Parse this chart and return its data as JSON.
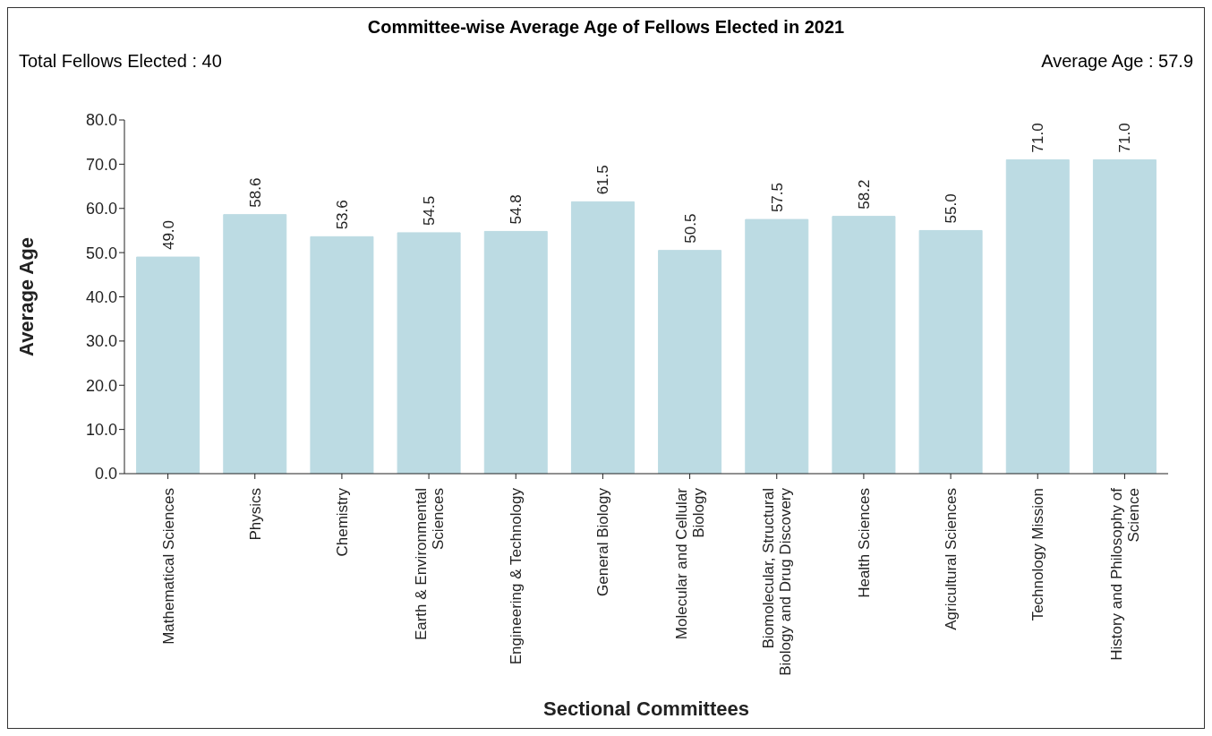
{
  "chart_data": {
    "type": "bar",
    "title": "Committee-wise Average Age of Fellows Elected in 2021",
    "xlabel": "Sectional Committees",
    "ylabel": "Average Age",
    "annotations": [
      "Total Fellows Elected : 40",
      "Average Age : 57.9"
    ],
    "categories": [
      "Mathematical Sciences",
      "Physics",
      "Chemistry",
      "Earth & Environmental Sciences",
      "Engineering & Technology",
      "General Biology",
      "Molecular and Cellular Biology",
      "Biomolecular, Structural Biology and Drug Discovery",
      "Health Sciences",
      "Agricultural Sciences",
      "Technology Mission",
      "History and Philosophy of Science"
    ],
    "values": [
      49.0,
      58.6,
      53.6,
      54.5,
      54.8,
      61.5,
      50.5,
      57.5,
      58.2,
      55.0,
      71.0,
      71.0
    ],
    "value_labels": [
      "49.0",
      "58.6",
      "53.6",
      "54.5",
      "54.8",
      "61.5",
      "50.5",
      "57.5",
      "58.2",
      "55.0",
      "71.0",
      "71.0"
    ],
    "color": "#bcdbe3",
    "ylim": [
      0,
      80
    ],
    "yticks": [
      {
        "value": 0,
        "label": "0.0"
      },
      {
        "value": 10,
        "label": "10.0"
      },
      {
        "value": 20,
        "label": "20.0"
      },
      {
        "value": 30,
        "label": "30.0"
      },
      {
        "value": 40,
        "label": "40.0"
      },
      {
        "value": 50,
        "label": "50.0"
      },
      {
        "value": 60,
        "label": "60.0"
      },
      {
        "value": 70,
        "label": "70.0"
      },
      {
        "value": 80,
        "label": "80.0"
      }
    ],
    "grid": false,
    "legend": false
  }
}
